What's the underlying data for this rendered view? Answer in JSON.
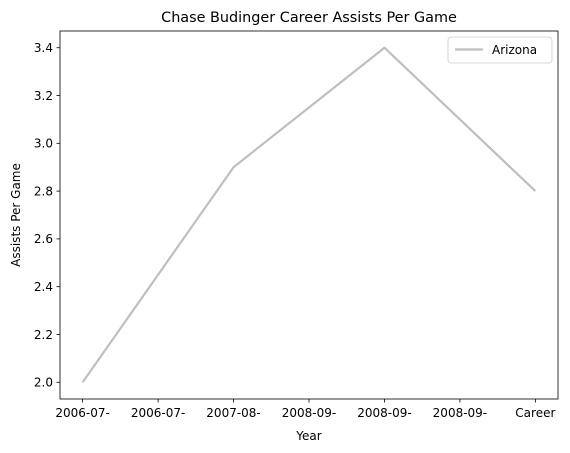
{
  "chart_data": {
    "type": "line",
    "title": "Chase Budinger Career Assists Per Game",
    "xlabel": "Year",
    "ylabel": "Assists Per Game",
    "categories": [
      "2006-07-",
      "2006-07-",
      "2007-08-",
      "2008-09-",
      "2008-09-",
      "2008-09-",
      "Career"
    ],
    "x_ticks": [
      0,
      1,
      2,
      3,
      4,
      5,
      6
    ],
    "series": [
      {
        "name": "Arizona",
        "color": "#bfbfbf",
        "points": [
          {
            "x": 0,
            "y": 2.0
          },
          {
            "x": 2,
            "y": 2.9
          },
          {
            "x": 4,
            "y": 3.4
          },
          {
            "x": 6,
            "y": 2.8
          }
        ]
      }
    ],
    "xlim": [
      -0.3,
      6.3
    ],
    "ylim": [
      1.93,
      3.47
    ],
    "y_ticks": [
      2.0,
      2.2,
      2.4,
      2.6,
      2.8,
      3.0,
      3.2,
      3.4
    ],
    "y_tick_labels": [
      "2.0",
      "2.2",
      "2.4",
      "2.6",
      "2.8",
      "3.0",
      "3.2",
      "3.4"
    ],
    "grid": false,
    "legend_position": "top-right"
  }
}
